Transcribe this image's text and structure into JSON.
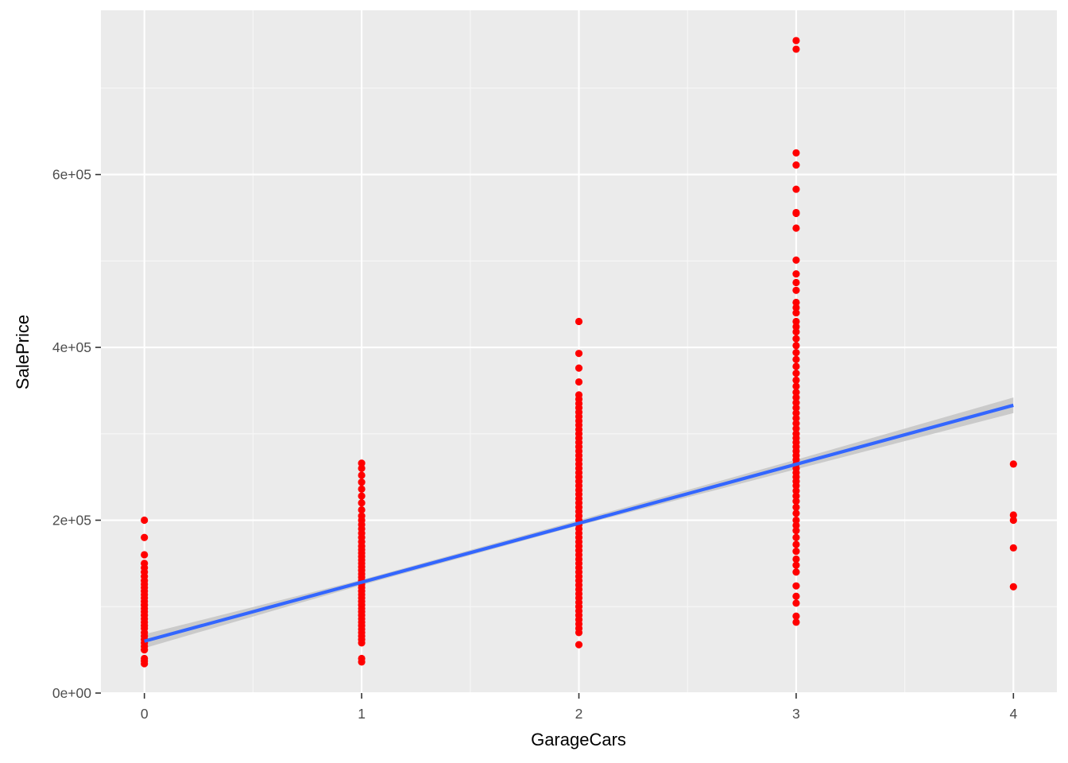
{
  "chart_data": {
    "type": "scatter",
    "title": "",
    "xlabel": "GarageCars",
    "ylabel": "SalePrice",
    "xlim": [
      -0.2,
      4.2
    ],
    "ylim": [
      0,
      790000
    ],
    "x_ticks": [
      0,
      1,
      2,
      3,
      4
    ],
    "x_tick_labels": [
      "0",
      "1",
      "2",
      "3",
      "4"
    ],
    "y_ticks": [
      0,
      200000,
      400000,
      600000
    ],
    "y_tick_labels": [
      "0e+00",
      "2e+05",
      "4e+05",
      "6e+05"
    ],
    "grid": true,
    "legend": "none",
    "point_color": "#FF0000",
    "line_color": "#3366FF",
    "band_color": "#BFBFBF",
    "panel_background": "#EBEBEB",
    "points": [
      {
        "x": 0,
        "values": [
          200000,
          180000,
          160000,
          150000,
          145000,
          140000,
          135000,
          130000,
          126000,
          122000,
          118000,
          114000,
          110000,
          106000,
          102000,
          98000,
          94000,
          90000,
          86000,
          82000,
          78000,
          75000,
          70000,
          66000,
          62000,
          58000,
          54000,
          50000,
          40000,
          37000,
          34000
        ]
      },
      {
        "x": 1,
        "values": [
          266000,
          260000,
          252000,
          244000,
          236000,
          228000,
          220000,
          212000,
          205000,
          200000,
          195000,
          190000,
          185000,
          180000,
          175000,
          170000,
          166000,
          162000,
          158000,
          154000,
          150000,
          146000,
          142000,
          138000,
          134000,
          130000,
          126000,
          122000,
          118000,
          114000,
          110000,
          106000,
          102000,
          98000,
          94000,
          90000,
          86000,
          82000,
          78000,
          74000,
          70000,
          66000,
          62000,
          58000,
          40000,
          36000
        ]
      },
      {
        "x": 2,
        "values": [
          430000,
          393000,
          376000,
          360000,
          345000,
          340000,
          335000,
          330000,
          325000,
          320000,
          315000,
          310000,
          305000,
          300000,
          295000,
          290000,
          285000,
          280000,
          275000,
          270000,
          265000,
          260000,
          255000,
          250000,
          245000,
          240000,
          235000,
          230000,
          225000,
          220000,
          215000,
          210000,
          205000,
          200000,
          195000,
          190000,
          185000,
          180000,
          175000,
          170000,
          165000,
          160000,
          155000,
          150000,
          145000,
          140000,
          135000,
          130000,
          125000,
          120000,
          115000,
          110000,
          105000,
          100000,
          95000,
          90000,
          85000,
          80000,
          75000,
          70000,
          56000
        ]
      },
      {
        "x": 3,
        "values": [
          755000,
          745000,
          625000,
          611000,
          583000,
          556000,
          555000,
          538000,
          501000,
          485000,
          475000,
          466000,
          452000,
          446000,
          440000,
          430000,
          424000,
          418000,
          410000,
          402000,
          394000,
          386000,
          378000,
          370000,
          362000,
          355000,
          348000,
          342000,
          336000,
          330000,
          324000,
          318000,
          312000,
          306000,
          300000,
          295000,
          290000,
          285000,
          280000,
          275000,
          270000,
          265000,
          260000,
          255000,
          250000,
          245000,
          240000,
          234000,
          228000,
          222000,
          215000,
          208000,
          200000,
          194000,
          188000,
          180000,
          172000,
          164000,
          155000,
          148000,
          140000,
          124000,
          112000,
          104000,
          89000,
          82000
        ]
      },
      {
        "x": 4,
        "values": [
          265000,
          206000,
          200000,
          168000,
          123000
        ]
      }
    ],
    "fit_line": {
      "x": [
        0,
        4
      ],
      "y": [
        60000,
        333000
      ]
    },
    "confidence_band": {
      "x": [
        0,
        1,
        2,
        3,
        4
      ],
      "lower": [
        52000,
        125000,
        194000,
        259000,
        324000
      ],
      "upper": [
        68000,
        131000,
        200000,
        270000,
        342000
      ]
    }
  }
}
